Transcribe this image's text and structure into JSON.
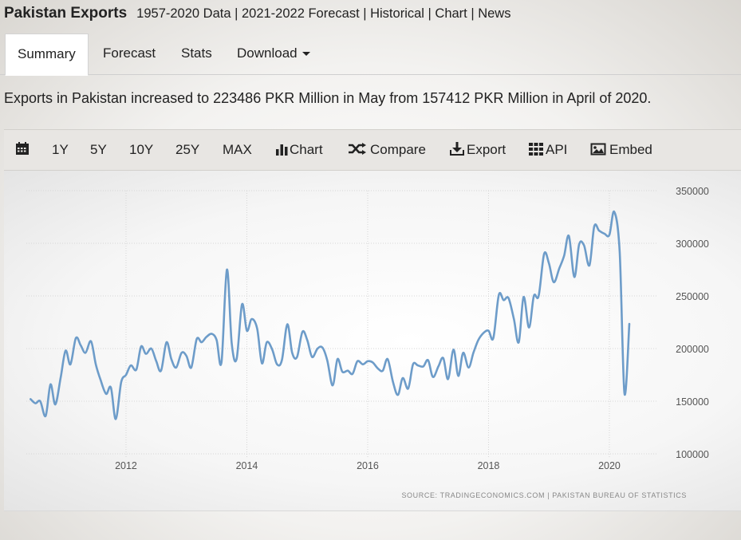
{
  "header": {
    "title": "Pakistan Exports",
    "links": "1957-2020 Data | 2021-2022 Forecast | Historical | Chart | News"
  },
  "tabs": [
    {
      "label": "Summary"
    },
    {
      "label": "Forecast"
    },
    {
      "label": "Stats"
    },
    {
      "label": "Download"
    }
  ],
  "description": "Exports in Pakistan increased to 223486 PKR Million in May from 157412 PKR Million in April of 2020.",
  "toolbar": {
    "calendar_icon": "calendar-icon",
    "ranges": [
      "1Y",
      "5Y",
      "10Y",
      "25Y",
      "MAX"
    ],
    "chart": "Chart",
    "compare": "Compare",
    "export": "Export",
    "api": "API",
    "embed": "Embed"
  },
  "colors": {
    "line": "#6d9cc9",
    "toolbar_bg": "#e8e6e3"
  },
  "chart_data": {
    "type": "line",
    "x_ticks": [
      "2012",
      "2014",
      "2016",
      "2018",
      "2020"
    ],
    "y_ticks": [
      "100000",
      "150000",
      "200000",
      "250000",
      "300000",
      "350000"
    ],
    "ylim": [
      100000,
      350000
    ],
    "xlim": [
      2010.35,
      2020.7
    ],
    "grid": true,
    "source": "SOURCE: TRADINGECONOMICS.COM  |  PAKISTAN BUREAU OF STATISTICS",
    "series": [
      {
        "values": [
          [
            2010.42,
            152000
          ],
          [
            2010.5,
            148000
          ],
          [
            2010.58,
            150000
          ],
          [
            2010.67,
            136000
          ],
          [
            2010.75,
            166000
          ],
          [
            2010.83,
            147000
          ],
          [
            2010.92,
            173000
          ],
          [
            2011.0,
            198000
          ],
          [
            2011.08,
            185000
          ],
          [
            2011.17,
            210000
          ],
          [
            2011.25,
            203000
          ],
          [
            2011.33,
            196000
          ],
          [
            2011.42,
            207000
          ],
          [
            2011.5,
            185000
          ],
          [
            2011.58,
            170000
          ],
          [
            2011.67,
            157000
          ],
          [
            2011.75,
            163000
          ],
          [
            2011.83,
            133000
          ],
          [
            2011.92,
            168000
          ],
          [
            2012.0,
            175000
          ],
          [
            2012.08,
            184000
          ],
          [
            2012.17,
            180000
          ],
          [
            2012.25,
            202000
          ],
          [
            2012.33,
            195000
          ],
          [
            2012.42,
            200000
          ],
          [
            2012.5,
            188000
          ],
          [
            2012.58,
            179000
          ],
          [
            2012.67,
            206000
          ],
          [
            2012.75,
            190000
          ],
          [
            2012.83,
            182000
          ],
          [
            2012.92,
            196000
          ],
          [
            2013.0,
            193000
          ],
          [
            2013.08,
            182000
          ],
          [
            2013.17,
            209000
          ],
          [
            2013.25,
            206000
          ],
          [
            2013.33,
            211000
          ],
          [
            2013.42,
            214000
          ],
          [
            2013.5,
            208000
          ],
          [
            2013.58,
            187000
          ],
          [
            2013.67,
            275000
          ],
          [
            2013.75,
            205000
          ],
          [
            2013.83,
            190000
          ],
          [
            2013.92,
            242000
          ],
          [
            2014.0,
            217000
          ],
          [
            2014.08,
            228000
          ],
          [
            2014.17,
            219000
          ],
          [
            2014.25,
            186000
          ],
          [
            2014.33,
            206000
          ],
          [
            2014.42,
            199000
          ],
          [
            2014.5,
            185000
          ],
          [
            2014.58,
            189000
          ],
          [
            2014.67,
            223000
          ],
          [
            2014.75,
            196000
          ],
          [
            2014.83,
            192000
          ],
          [
            2014.92,
            216000
          ],
          [
            2015.0,
            208000
          ],
          [
            2015.08,
            192000
          ],
          [
            2015.17,
            200000
          ],
          [
            2015.25,
            201000
          ],
          [
            2015.33,
            189000
          ],
          [
            2015.42,
            165000
          ],
          [
            2015.5,
            190000
          ],
          [
            2015.58,
            178000
          ],
          [
            2015.67,
            179000
          ],
          [
            2015.75,
            176000
          ],
          [
            2015.83,
            188000
          ],
          [
            2015.92,
            185000
          ],
          [
            2016.0,
            188000
          ],
          [
            2016.08,
            187000
          ],
          [
            2016.17,
            181000
          ],
          [
            2016.25,
            179000
          ],
          [
            2016.33,
            190000
          ],
          [
            2016.42,
            168000
          ],
          [
            2016.5,
            156000
          ],
          [
            2016.58,
            172000
          ],
          [
            2016.67,
            162000
          ],
          [
            2016.75,
            185000
          ],
          [
            2016.83,
            184000
          ],
          [
            2016.92,
            183000
          ],
          [
            2017.0,
            189000
          ],
          [
            2017.08,
            173000
          ],
          [
            2017.17,
            183000
          ],
          [
            2017.25,
            191000
          ],
          [
            2017.33,
            171000
          ],
          [
            2017.42,
            199000
          ],
          [
            2017.5,
            174000
          ],
          [
            2017.58,
            196000
          ],
          [
            2017.67,
            182000
          ],
          [
            2017.75,
            196000
          ],
          [
            2017.83,
            208000
          ],
          [
            2017.92,
            215000
          ],
          [
            2018.0,
            217000
          ],
          [
            2018.08,
            210000
          ],
          [
            2018.17,
            251000
          ],
          [
            2018.25,
            246000
          ],
          [
            2018.33,
            248000
          ],
          [
            2018.42,
            228000
          ],
          [
            2018.5,
            206000
          ],
          [
            2018.58,
            249000
          ],
          [
            2018.67,
            220000
          ],
          [
            2018.75,
            250000
          ],
          [
            2018.83,
            250000
          ],
          [
            2018.92,
            290000
          ],
          [
            2019.0,
            281000
          ],
          [
            2019.08,
            263000
          ],
          [
            2019.17,
            276000
          ],
          [
            2019.25,
            288000
          ],
          [
            2019.33,
            307000
          ],
          [
            2019.42,
            268000
          ],
          [
            2019.5,
            299000
          ],
          [
            2019.58,
            298000
          ],
          [
            2019.67,
            279000
          ],
          [
            2019.75,
            316000
          ],
          [
            2019.83,
            312000
          ],
          [
            2019.92,
            309000
          ],
          [
            2020.0,
            308000
          ],
          [
            2020.08,
            330000
          ],
          [
            2020.17,
            292000
          ],
          [
            2020.25,
            157412
          ],
          [
            2020.33,
            223486
          ]
        ]
      }
    ]
  }
}
